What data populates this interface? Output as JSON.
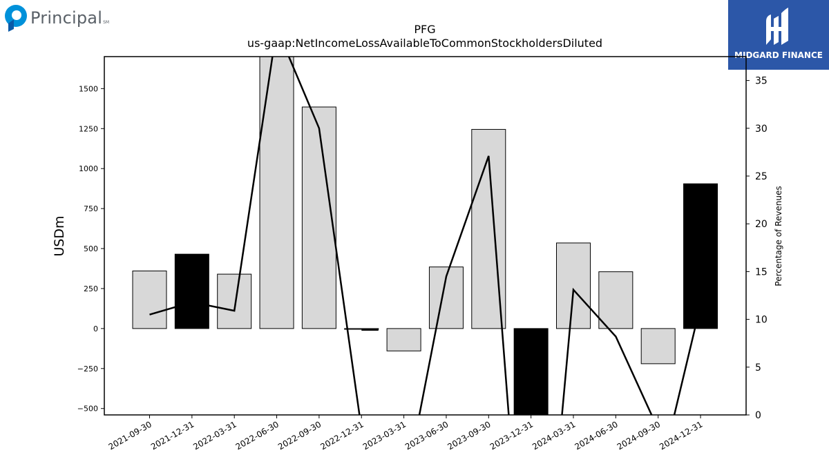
{
  "branding": {
    "left_logo_text": "Principal",
    "left_logo_mark": "SM",
    "right_logo_text": "MIDGARD FINANCE"
  },
  "chart_data": {
    "type": "bar",
    "title": "PFG",
    "subtitle": "us-gaap:NetIncomeLossAvailableToCommonStockholdersDiluted",
    "ylabel": "USDm",
    "y2label": "Percentage of Revenues",
    "ylim": [
      -540,
      1700
    ],
    "y2lim": [
      0,
      37.5
    ],
    "yticks": [
      -500,
      -250,
      0,
      250,
      500,
      750,
      1000,
      1250,
      1500
    ],
    "yticklabels": [
      "−500",
      "−250",
      "0",
      "250",
      "500",
      "750",
      "1000",
      "1250",
      "1500"
    ],
    "y2ticks": [
      0,
      5,
      10,
      15,
      20,
      25,
      30,
      35
    ],
    "categories": [
      "2021-09-30",
      "2021-12-31",
      "2022-03-31",
      "2022-06-30",
      "2022-09-30",
      "2022-12-31",
      "2023-03-31",
      "2023-06-30",
      "2023-09-30",
      "2023-12-31",
      "2024-03-31",
      "2024-06-30",
      "2024-09-30",
      "2024-12-31"
    ],
    "series": [
      {
        "kind": "bar",
        "values": [
          360,
          465,
          340,
          1710,
          1385,
          -5,
          -140,
          385,
          1245,
          -600,
          535,
          355,
          -220,
          905
        ],
        "highlight": [
          false,
          true,
          false,
          false,
          false,
          false,
          false,
          false,
          false,
          true,
          false,
          false,
          false,
          true
        ]
      },
      {
        "kind": "line",
        "axis": "right",
        "values": [
          10.5,
          11.8,
          10.9,
          40.5,
          30.0,
          null,
          null,
          14.5,
          27.1,
          null,
          13.1,
          8.2,
          null,
          11.5
        ],
        "segments": [
          [
            [
              0,
              10.5
            ],
            [
              1,
              11.8
            ],
            [
              2,
              10.9
            ],
            [
              3,
              40.5
            ],
            [
              4,
              30.0
            ],
            [
              5,
              -1.5
            ]
          ],
          [
            [
              5,
              8.9
            ],
            [
              5.4,
              8.9
            ]
          ],
          [
            [
              6.3,
              -1.5
            ],
            [
              7,
              14.5
            ],
            [
              8,
              27.1
            ],
            [
              8.5,
              -1.5
            ]
          ],
          [
            [
              9.7,
              -1.5
            ],
            [
              10,
              13.1
            ],
            [
              11,
              8.2
            ],
            [
              12,
              -1.5
            ]
          ],
          [
            [
              12.3,
              -1.5
            ],
            [
              13,
              11.5
            ]
          ]
        ]
      }
    ],
    "colors": {
      "bar": "#d8d8d8",
      "bar_highlight": "#000000",
      "line": "#000000"
    },
    "grid": false,
    "legend": "none"
  }
}
